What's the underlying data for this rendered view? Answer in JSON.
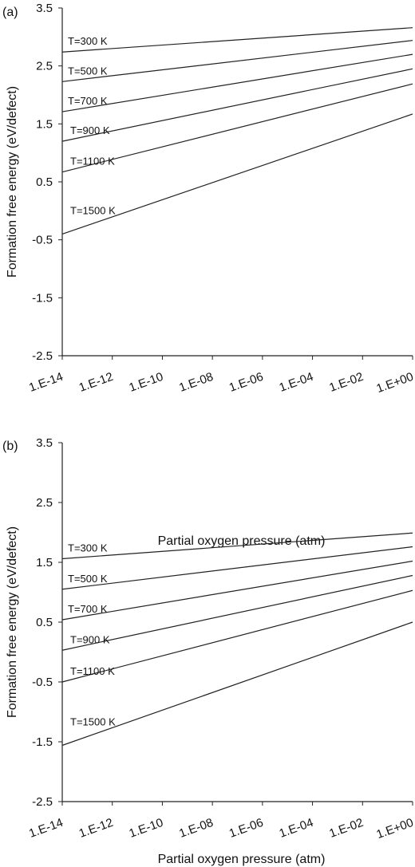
{
  "chart_data": [
    {
      "type": "line",
      "panel_label": "(a)",
      "xlabel": "Partial oxygen pressure (atm)",
      "ylabel": "Formation free energy (eV/defect)",
      "x_scale": "log",
      "xlim": [
        1e-14,
        1
      ],
      "ylim": [
        -2.5,
        3.5
      ],
      "x_tick_labels": [
        "1.E-14",
        "1.E-12",
        "1.E-10",
        "1.E-08",
        "1.E-06",
        "1.E-04",
        "1.E-02",
        "1.E+00"
      ],
      "y_ticks": [
        3.5,
        2.5,
        1.5,
        0.5,
        -0.5,
        -1.5,
        -2.5
      ],
      "y_tick_labels": [
        "3.5",
        "2.5",
        "1.5",
        "0.5",
        "-0.5",
        "-1.5",
        "-2.5"
      ],
      "grid": false,
      "series": [
        {
          "name": "T=300 K",
          "x": [
            1e-14,
            1
          ],
          "y": [
            2.74,
            3.16
          ]
        },
        {
          "name": "T=500 K",
          "x": [
            1e-14,
            1
          ],
          "y": [
            2.23,
            2.94
          ]
        },
        {
          "name": "T=700 K",
          "x": [
            1e-14,
            1
          ],
          "y": [
            1.71,
            2.7
          ]
        },
        {
          "name": "T=900 K",
          "x": [
            1e-14,
            1
          ],
          "y": [
            1.2,
            2.45
          ]
        },
        {
          "name": "T=1100 K",
          "x": [
            1e-14,
            1
          ],
          "y": [
            0.67,
            2.19
          ]
        },
        {
          "name": "T=1500 K",
          "x": [
            1e-14,
            1
          ],
          "y": [
            -0.4,
            1.67
          ]
        }
      ]
    },
    {
      "type": "line",
      "panel_label": "(b)",
      "xlabel": "Partial oxygen pressure (atm)",
      "ylabel": "Formation free energy (eV/defect)",
      "x_scale": "log",
      "xlim": [
        1e-14,
        1
      ],
      "ylim": [
        -2.5,
        3.5
      ],
      "x_tick_labels": [
        "1.E-14",
        "1.E-12",
        "1.E-10",
        "1.E-08",
        "1.E-06",
        "1.E-04",
        "1.E-02",
        "1.E+00"
      ],
      "y_ticks": [
        3.5,
        2.5,
        1.5,
        0.5,
        -0.5,
        -1.5,
        -2.5
      ],
      "y_tick_labels": [
        "3.5",
        "2.5",
        "1.5",
        "0.5",
        "-0.5",
        "-1.5",
        "-2.5"
      ],
      "grid": false,
      "series": [
        {
          "name": "T=300 K",
          "x": [
            1e-14,
            1
          ],
          "y": [
            1.56,
            1.99
          ]
        },
        {
          "name": "T=500 K",
          "x": [
            1e-14,
            1
          ],
          "y": [
            1.05,
            1.76
          ]
        },
        {
          "name": "T=700 K",
          "x": [
            1e-14,
            1
          ],
          "y": [
            0.54,
            1.52
          ]
        },
        {
          "name": "T=900 K",
          "x": [
            1e-14,
            1
          ],
          "y": [
            0.03,
            1.28
          ]
        },
        {
          "name": "T=1100 K",
          "x": [
            1e-14,
            1
          ],
          "y": [
            -0.5,
            1.03
          ]
        },
        {
          "name": "T=1500 K",
          "x": [
            1e-14,
            1
          ],
          "y": [
            -1.56,
            0.5
          ]
        }
      ]
    }
  ]
}
